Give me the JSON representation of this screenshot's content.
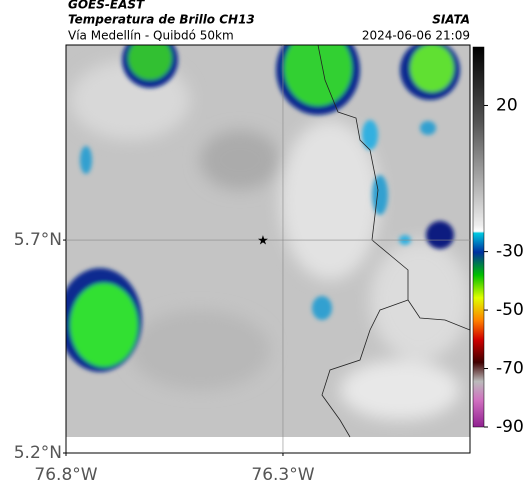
{
  "header": {
    "source": "GOES-EAST",
    "title": "Temperatura de Brillo CH13",
    "brand": "SIATA",
    "subtitle": "Vía Medellín - Quibdó 50km",
    "datetime": "2024-06-06 21:09"
  },
  "map": {
    "xlim": [
      -76.8,
      -75.869
    ],
    "ylim": [
      5.2,
      6.158
    ],
    "xticks": [
      {
        "value": -76.8,
        "label": "76.8°W"
      },
      {
        "value": -76.3,
        "label": "76.3°W"
      }
    ],
    "yticks": [
      {
        "value": 5.7,
        "label": "5.7°N"
      },
      {
        "value": 5.2,
        "label": "5.2°N"
      }
    ],
    "grid": true,
    "marker": {
      "lon": -76.346,
      "lat": 5.7
    }
  },
  "colorbar": {
    "lim": [
      40,
      -90
    ],
    "ticks": [
      20,
      -30,
      -50,
      -70,
      -90
    ]
  }
}
